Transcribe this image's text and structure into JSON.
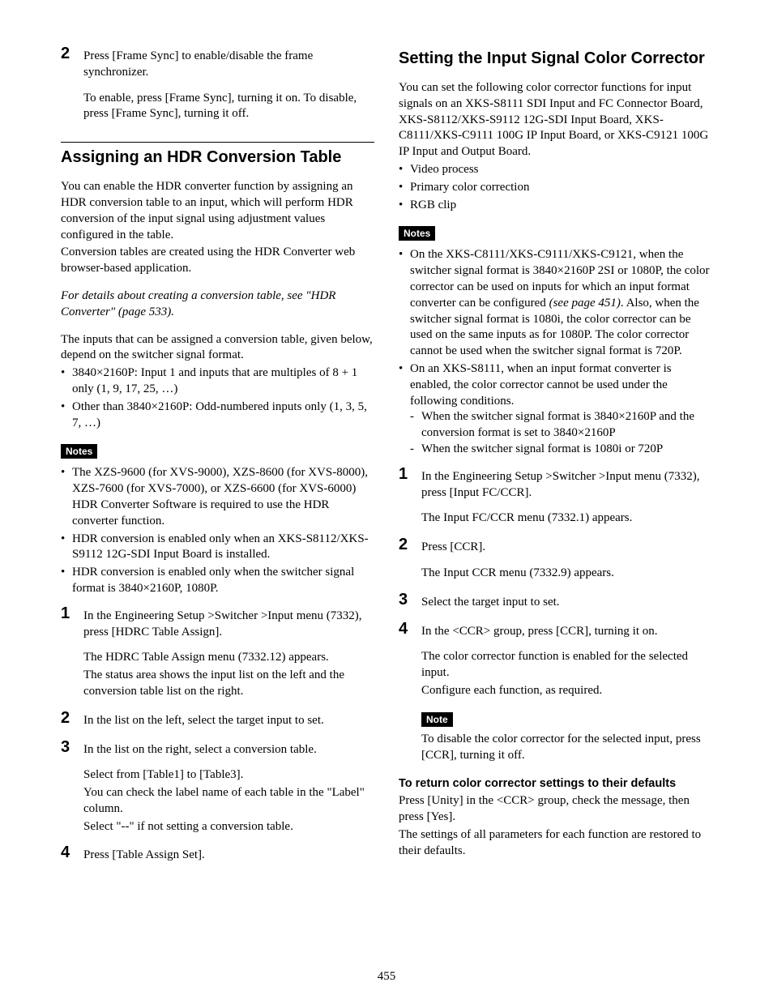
{
  "page_number": "455",
  "left": {
    "step2_top": {
      "num": "2",
      "line1": "Press [Frame Sync] to enable/disable the frame synchronizer.",
      "line2": "To enable, press [Frame Sync], turning it on. To disable, press [Frame Sync], turning it off."
    },
    "hdr": {
      "title": "Assigning an HDR Conversion Table",
      "p1": "You can enable the HDR converter function by assigning an HDR conversion table to an input, which will perform HDR conversion of the input signal using adjustment values configured in the table.",
      "p2": "Conversion tables are created using the HDR Converter web browser-based application.",
      "ref": "For details about creating a conversion table, see \"HDR Converter\" (page 533).",
      "p3": "The inputs that can be assigned a conversion table, given below, depend on the switcher signal format.",
      "bullets": [
        "3840×2160P: Input 1 and inputs that are multiples of 8 + 1 only (1, 9, 17, 25, …)",
        "Other than 3840×2160P: Odd-numbered inputs only (1, 3, 5, 7, …)"
      ],
      "notes_label": "Notes",
      "notes": [
        "The XZS-9600 (for XVS-9000), XZS-8600 (for XVS-8000), XZS-7600 (for XVS-7000), or XZS-6600 (for XVS-6000) HDR Converter Software is required to use the HDR converter function.",
        "HDR conversion is enabled only when an XKS-S8112/XKS-S9112 12G-SDI Input Board is installed.",
        "HDR conversion is enabled only when the switcher signal format is 3840×2160P, 1080P."
      ],
      "steps": [
        {
          "num": "1",
          "body": "In the Engineering Setup >Switcher >Input menu (7332), press [HDRC Table Assign].",
          "result1": "The HDRC Table Assign menu (7332.12) appears.",
          "result2": "The status area shows the input list on the left and the conversion table list on the right."
        },
        {
          "num": "2",
          "body": "In the list on the left, select the target input to set."
        },
        {
          "num": "3",
          "body": "In the list on the right, select a conversion table.",
          "result1": "Select from [Table1] to [Table3].",
          "result2": "You can check the label name of each table in the \"Label\" column.",
          "result3": "Select \"--\" if not setting a conversion table."
        },
        {
          "num": "4",
          "body": "Press [Table Assign Set]."
        }
      ]
    }
  },
  "right": {
    "ccr": {
      "title": "Setting the Input Signal Color Corrector",
      "p1": "You can set the following color corrector functions for input signals on an XKS-S8111 SDI Input and FC Connector Board, XKS-S8112/XKS-S9112 12G-SDI Input Board, XKS-C8111/XKS-C9111 100G IP Input Board, or XKS-C9121 100G IP Input and Output Board.",
      "bullets": [
        "Video process",
        "Primary color correction",
        "RGB clip"
      ],
      "notes_label": "Notes",
      "note1_a": "On the XKS-C8111/XKS-C9111/XKS-C9121, when the switcher signal format is 3840×2160P 2SI or 1080P, the color corrector can be used on inputs for which an input format converter can be configured ",
      "note1_ref": "(see page 451)",
      "note1_b": ". Also, when the switcher signal format is 1080i, the color corrector can be used on the same inputs as for 1080P. The color corrector cannot be used when the switcher signal format is 720P.",
      "note2": "On an XKS-S8111, when an input format converter is enabled, the color corrector cannot be used under the following conditions.",
      "note2_sub": [
        "When the switcher signal format is 3840×2160P and the conversion format is set to 3840×2160P",
        "When the switcher signal format is 1080i or 720P"
      ],
      "steps": [
        {
          "num": "1",
          "body": "In the Engineering Setup >Switcher >Input menu (7332), press [Input FC/CCR].",
          "result1": "The Input FC/CCR menu (7332.1) appears."
        },
        {
          "num": "2",
          "body": "Press [CCR].",
          "result1": "The Input CCR menu (7332.9) appears."
        },
        {
          "num": "3",
          "body": "Select the target input to set."
        },
        {
          "num": "4",
          "body": "In the <CCR> group, press [CCR], turning it on.",
          "result1": "The color corrector function is enabled for the selected input.",
          "result2": "Configure each function, as required.",
          "note_label": "Note",
          "note_body": "To disable the color corrector for the selected input, press [CCR], turning it off."
        }
      ],
      "defaults_h": "To return color corrector settings to their defaults",
      "defaults_p1": "Press [Unity] in the <CCR> group, check the message, then press [Yes].",
      "defaults_p2": "The settings of all parameters for each function are restored to their defaults."
    }
  }
}
